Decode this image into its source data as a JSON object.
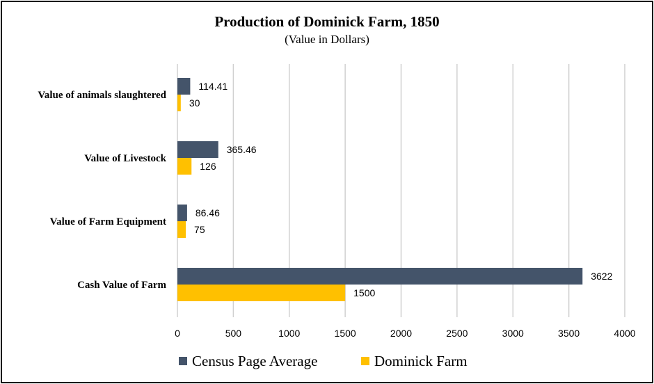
{
  "chart_data": {
    "type": "bar",
    "orientation": "horizontal",
    "title": "Production of Dominick Farm, 1850",
    "subtitle": "(Value in Dollars)",
    "categories": [
      "Value of animals slaughtered",
      "Value of Livestock",
      "Value of Farm Equipment",
      "Cash Value of Farm"
    ],
    "series": [
      {
        "name": "Census Page Average",
        "values": [
          114.41,
          365.46,
          86.46,
          3622
        ],
        "color": "#44546a"
      },
      {
        "name": "Dominick Farm",
        "values": [
          30,
          126,
          75,
          1500
        ],
        "color": "#ffc000"
      }
    ],
    "xlim": [
      0,
      4000
    ],
    "xticks": [
      0,
      500,
      1000,
      1500,
      2000,
      2500,
      3000,
      3500,
      4000
    ],
    "grid": true,
    "legend": "bottom"
  }
}
